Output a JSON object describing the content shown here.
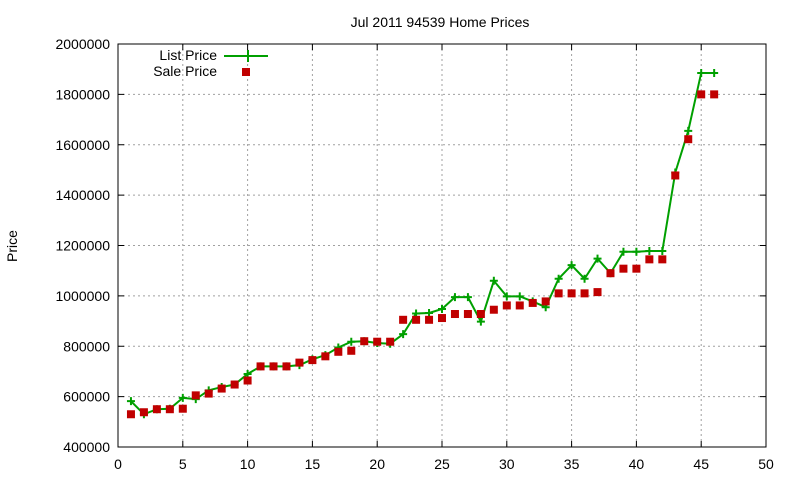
{
  "chart_data": {
    "type": "line",
    "title": "Jul 2011 94539 Home Prices",
    "xlabel": "",
    "ylabel": "Price",
    "xlim": [
      0,
      50
    ],
    "ylim": [
      400000,
      2000000
    ],
    "x_ticks": [
      0,
      5,
      10,
      15,
      20,
      25,
      30,
      35,
      40,
      45,
      50
    ],
    "y_ticks": [
      400000,
      600000,
      800000,
      1000000,
      1200000,
      1400000,
      1600000,
      1800000,
      2000000
    ],
    "grid": true,
    "legend_position": "top-left",
    "series": [
      {
        "name": "List Price",
        "style": "linespoints",
        "marker": "plus",
        "color": "#00a000",
        "x": [
          1,
          2,
          3,
          4,
          5,
          6,
          7,
          8,
          9,
          10,
          11,
          12,
          13,
          14,
          15,
          16,
          17,
          18,
          19,
          20,
          21,
          22,
          23,
          24,
          25,
          26,
          27,
          28,
          29,
          30,
          31,
          32,
          33,
          34,
          35,
          36,
          37,
          38,
          39,
          40,
          41,
          42,
          43,
          44,
          45,
          46
        ],
        "y": [
          582000,
          530000,
          550000,
          552000,
          595000,
          590000,
          625000,
          638000,
          648000,
          690000,
          720000,
          720000,
          720000,
          725000,
          748000,
          765000,
          795000,
          818000,
          820000,
          813000,
          810000,
          848000,
          930000,
          932000,
          948000,
          995000,
          995000,
          898000,
          1060000,
          998000,
          998000,
          978000,
          955000,
          1068000,
          1122000,
          1068000,
          1148000,
          1090000,
          1175000,
          1175000,
          1178000,
          1178000,
          1490000,
          1655000,
          1885000,
          1885000
        ]
      },
      {
        "name": "Sale Price",
        "style": "points",
        "marker": "square",
        "color": "#c00000",
        "x": [
          1,
          2,
          3,
          4,
          5,
          6,
          7,
          8,
          9,
          10,
          11,
          12,
          13,
          14,
          15,
          16,
          17,
          18,
          19,
          20,
          21,
          22,
          23,
          24,
          25,
          26,
          27,
          28,
          29,
          30,
          31,
          32,
          33,
          34,
          35,
          36,
          37,
          38,
          39,
          40,
          41,
          42,
          43,
          44,
          45,
          46
        ],
        "y": [
          530000,
          538000,
          550000,
          550000,
          552000,
          605000,
          612000,
          632000,
          648000,
          664000,
          720000,
          720000,
          720000,
          735000,
          745000,
          760000,
          778000,
          782000,
          820000,
          818000,
          818000,
          905000,
          905000,
          905000,
          912000,
          928000,
          928000,
          928000,
          945000,
          962000,
          962000,
          972000,
          978000,
          1010000,
          1010000,
          1010000,
          1015000,
          1090000,
          1108000,
          1108000,
          1145000,
          1145000,
          1478000,
          1622000,
          1800000,
          1800000
        ]
      }
    ]
  }
}
